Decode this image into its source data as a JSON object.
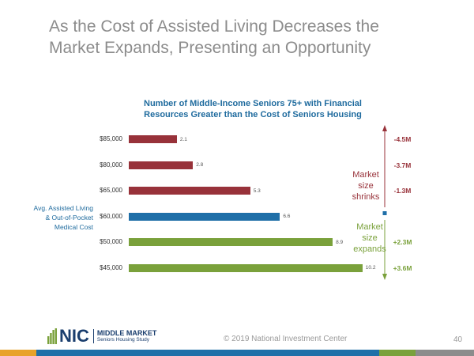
{
  "slide": {
    "title_line1": "As the Cost of Assisted Living Decreases the",
    "title_line2": "Market Expands, Presenting an Opportunity"
  },
  "chart_data": {
    "type": "bar",
    "orientation": "horizontal",
    "title_line1": "Number of Middle-Income Seniors 75+ with Financial",
    "title_line2": "Resources Greater than the Cost of Seniors Housing",
    "categories": [
      "$85,000",
      "$80,000",
      "$65,000",
      "$60,000",
      "$50,000",
      "$45,000"
    ],
    "values": [
      2.1,
      2.8,
      5.3,
      6.6,
      8.9,
      10.2
    ],
    "value_labels": [
      "2.1",
      "2.8",
      "5.3",
      "6.6",
      "8.9",
      "10.2"
    ],
    "bar_colors": [
      "#98323a",
      "#98323a",
      "#98323a",
      "#1f6fa8",
      "#7aa13b",
      "#7aa13b"
    ],
    "changes": [
      "-4.5M",
      "-3.7M",
      "-1.3M",
      "",
      "+2.3M",
      "+3.6M"
    ],
    "change_colors": [
      "#98323a",
      "#98323a",
      "#98323a",
      "",
      "#7aa13b",
      "#7aa13b"
    ],
    "xlim": [
      0,
      12
    ],
    "grid": false,
    "legend": "none"
  },
  "annotations": {
    "avg_cost_line1": "Avg. Assisted Living",
    "avg_cost_line2": "& Out-of-Pocket",
    "avg_cost_line3": "Medical Cost",
    "shrink_line1": "Market",
    "shrink_line2": "size",
    "shrink_line3": "shrinks",
    "expand_line1": "Market",
    "expand_line2": "size",
    "expand_line3": "expands"
  },
  "footer": {
    "logo_nic": "NIC",
    "logo_line1": "MIDDLE MARKET",
    "logo_line2": "Seniors Housing Study",
    "copyright": "© 2019 National Investment Center",
    "page_number": "40"
  },
  "colors": {
    "title_gray": "#8c8c8c",
    "chart_blue": "#1f6b9e",
    "shrink_red": "#98323a",
    "expand_green": "#7aa13b",
    "strip": [
      "#e8a22a",
      "#1f6fa8",
      "#7aa13b",
      "#8c8c8c"
    ]
  }
}
